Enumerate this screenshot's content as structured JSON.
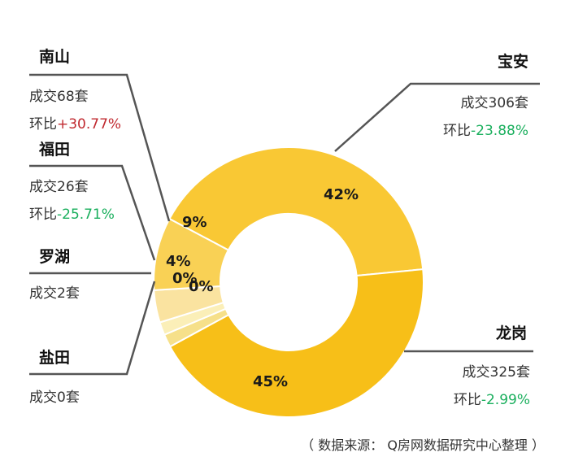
{
  "chart_data": {
    "type": "pie",
    "variant": "donut",
    "categories": [
      "宝安",
      "龙岗",
      "盐田",
      "罗湖",
      "福田",
      "南山"
    ],
    "values": [
      42,
      45,
      0,
      0,
      4,
      9
    ],
    "value_labels": [
      "42%",
      "45%",
      "0%",
      "0%",
      "4%",
      "9%"
    ],
    "colors": [
      "#F9C834",
      "#F7BF18",
      "#F6E08A",
      "#FBEFB8",
      "#FAE3A0",
      "#F9D155"
    ],
    "regions": {
      "baoan": {
        "name": "宝安",
        "deal_prefix": "成交",
        "deals": 306,
        "deal_suffix": "套",
        "mom_prefix": "环比",
        "mom": "-23.88%",
        "mom_color": "#1AAF5D"
      },
      "longgang": {
        "name": "龙岗",
        "deal_prefix": "成交",
        "deals": 325,
        "deal_suffix": "套",
        "mom_prefix": "环比",
        "mom": "-2.99%",
        "mom_color": "#1AAF5D"
      },
      "nanshan": {
        "name": "南山",
        "deal_prefix": "成交",
        "deals": 68,
        "deal_suffix": "套",
        "mom_prefix": "环比",
        "mom": "+30.77%",
        "mom_color": "#C0282E"
      },
      "futian": {
        "name": "福田",
        "deal_prefix": "成交",
        "deals": 26,
        "deal_suffix": "套",
        "mom_prefix": "环比",
        "mom": "-25.71%",
        "mom_color": "#1AAF5D"
      },
      "luohu": {
        "name": "罗湖",
        "deal_prefix": "成交",
        "deals": 2,
        "deal_suffix": "套"
      },
      "yantian": {
        "name": "盐田",
        "deal_prefix": "成交",
        "deals": 0,
        "deal_suffix": "套"
      }
    }
  },
  "source": "（ 数据来源： Q房网数据研究中心整理 ）"
}
